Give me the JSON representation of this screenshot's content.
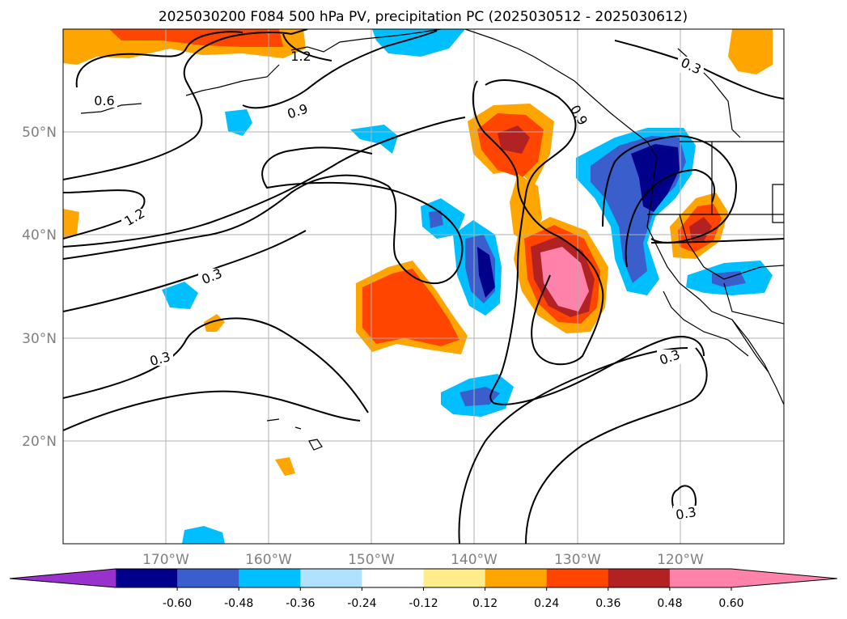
{
  "title": "2025030200 F084 500 hPa PV, precipitation PC (2025030512 - 2025030612)",
  "map": {
    "lon_labels": [
      "170°W",
      "160°W",
      "150°W",
      "140°W",
      "130°W",
      "120°W"
    ],
    "lat_labels": [
      "50°N",
      "40°N",
      "30°N",
      "20°N"
    ],
    "contour_labels": [
      "0.6",
      "1.2",
      "0.9",
      "0.3",
      "0.9",
      "1.2",
      "0.3",
      "0.3",
      "0.3",
      "0.3"
    ]
  },
  "colorbar": {
    "extend": "both",
    "ticks": [
      "-0.60",
      "-0.48",
      "-0.36",
      "-0.24",
      "-0.12",
      "0.12",
      "0.24",
      "0.36",
      "0.48",
      "0.60"
    ],
    "colors": {
      "under": "#9932cc",
      "bins": [
        "#00008b",
        "#3a5fcd",
        "#00bfff",
        "#b0e2ff",
        "#ffffff",
        "#ffec8b",
        "#ffa500",
        "#ff4500",
        "#b22222",
        "#ff82ab"
      ]
    }
  },
  "chart_data": {
    "type": "heatmap",
    "variables": [
      "500 hPa PV",
      "precipitation PC"
    ],
    "x_ticks": [
      "170°W",
      "160°W",
      "150°W",
      "140°W",
      "130°W",
      "120°W"
    ],
    "y_ticks": [
      "50°N",
      "40°N",
      "30°N",
      "20°N"
    ],
    "contour_levels": [
      0.3,
      0.6,
      0.9,
      1.2
    ],
    "shading_levels": [
      -0.6,
      -0.48,
      -0.36,
      -0.24,
      -0.12,
      0.12,
      0.24,
      0.36,
      0.48,
      0.6
    ]
  }
}
